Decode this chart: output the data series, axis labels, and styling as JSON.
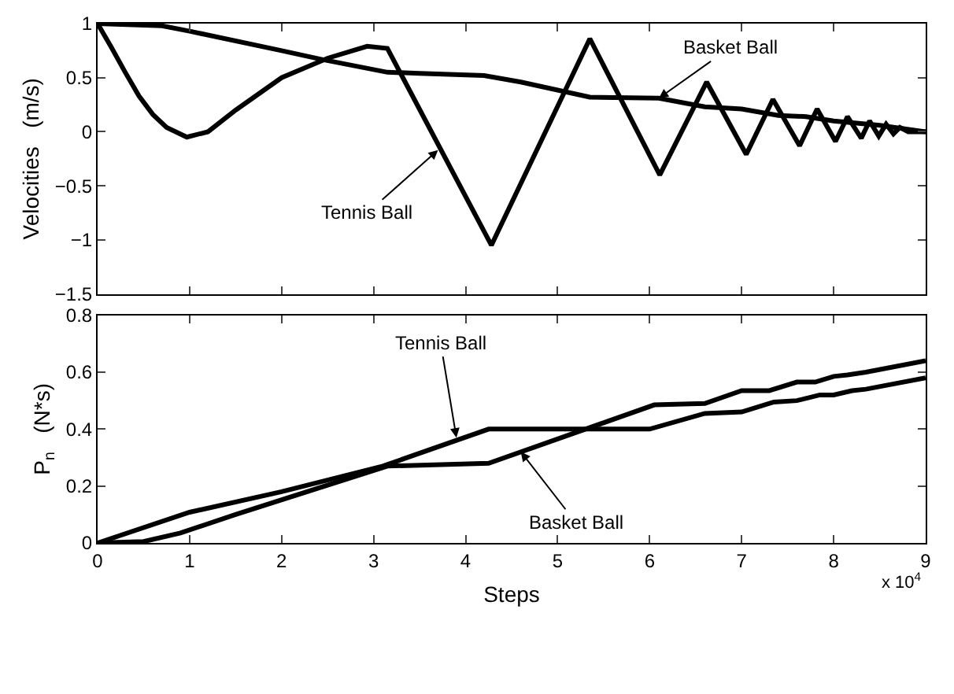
{
  "chart_data": [
    {
      "type": "line",
      "ylabel": "Velocities   (m/s)",
      "xlim": [
        0,
        9
      ],
      "xticks": [
        0,
        1,
        2,
        3,
        4,
        5,
        6,
        7,
        8,
        9
      ],
      "ylim": [
        -1.5,
        1
      ],
      "yticks": [
        -1.5,
        -1,
        -0.5,
        0,
        0.5,
        1
      ],
      "tick_labels": "y",
      "marker": "none",
      "line_style": "solid",
      "series": [
        {
          "color": "#000000",
          "x": [
            0,
            0.15,
            0.3,
            0.45,
            0.6,
            0.75,
            0.97,
            1.2,
            1.5,
            2.0,
            2.5,
            2.93,
            3.15,
            4.28,
            5.35,
            6.11,
            6.62,
            7.05,
            7.34,
            7.63,
            7.82,
            8.02,
            8.15,
            8.3,
            8.39,
            8.49,
            8.57,
            8.65,
            8.72,
            8.81,
            9.0
          ],
          "values": [
            1,
            0.78,
            0.55,
            0.33,
            0.16,
            0.04,
            -0.05,
            0.0,
            0.2,
            0.5,
            0.68,
            0.79,
            0.77,
            -1.05,
            0.86,
            -0.4,
            0.46,
            -0.21,
            0.3,
            -0.13,
            0.21,
            -0.09,
            0.14,
            -0.06,
            0.1,
            -0.04,
            0.07,
            -0.02,
            0.04,
            0.0,
            0.0
          ]
        },
        {
          "color": "#000000",
          "x": [
            0,
            0.7,
            1.0,
            2.0,
            2.43,
            3.15,
            3.5,
            4.2,
            4.6,
            5.35,
            6.1,
            6.6,
            7.0,
            7.4,
            7.7,
            8.0,
            8.5,
            9.0
          ],
          "values": [
            1,
            0.98,
            0.93,
            0.75,
            0.67,
            0.55,
            0.54,
            0.52,
            0.46,
            0.32,
            0.31,
            0.23,
            0.21,
            0.15,
            0.14,
            0.1,
            0.06,
            0.0
          ]
        }
      ],
      "annotations": [
        {
          "text": "Tennis Ball",
          "x": 3.7,
          "y": -0.17
        },
        {
          "text": "Basket Ball",
          "x": 6.1,
          "y": 0.31
        }
      ]
    },
    {
      "type": "line",
      "xlabel": "Steps",
      "ylabel": "P$_{n}$   (N*s)",
      "xlim": [
        0,
        9
      ],
      "xticks": [
        0,
        1,
        2,
        3,
        4,
        5,
        6,
        7,
        8,
        9
      ],
      "ylim": [
        0,
        0.8
      ],
      "yticks": [
        0,
        0.2,
        0.4,
        0.6,
        0.8
      ],
      "marker": "none",
      "line_style": "solid",
      "series": [
        {
          "color": "#000000",
          "x": [
            0,
            1,
            2,
            3.1,
            4.25,
            6.0,
            6.6,
            7.0,
            7.35,
            7.6,
            7.85,
            8.0,
            8.2,
            8.35,
            9.0
          ],
          "values": [
            0,
            0.108,
            0.18,
            0.27,
            0.4,
            0.4,
            0.455,
            0.46,
            0.495,
            0.5,
            0.52,
            0.52,
            0.535,
            0.54,
            0.58
          ]
        },
        {
          "color": "#000000",
          "x": [
            0,
            0.5,
            0.9,
            1.5,
            3.15,
            4.25,
            6.05,
            6.6,
            7.0,
            7.3,
            7.6,
            7.8,
            8.0,
            8.15,
            8.35,
            9.0
          ],
          "values": [
            0,
            0.005,
            0.035,
            0.1,
            0.27,
            0.28,
            0.485,
            0.49,
            0.535,
            0.535,
            0.565,
            0.565,
            0.585,
            0.59,
            0.6,
            0.64
          ]
        }
      ],
      "annotations": [
        {
          "text": "Tennis Ball",
          "x": 3.9,
          "y": 0.37
        },
        {
          "text": "Basket Ball",
          "x": 4.6,
          "y": 0.32
        },
        "x 10$^{4}$"
      ]
    }
  ]
}
